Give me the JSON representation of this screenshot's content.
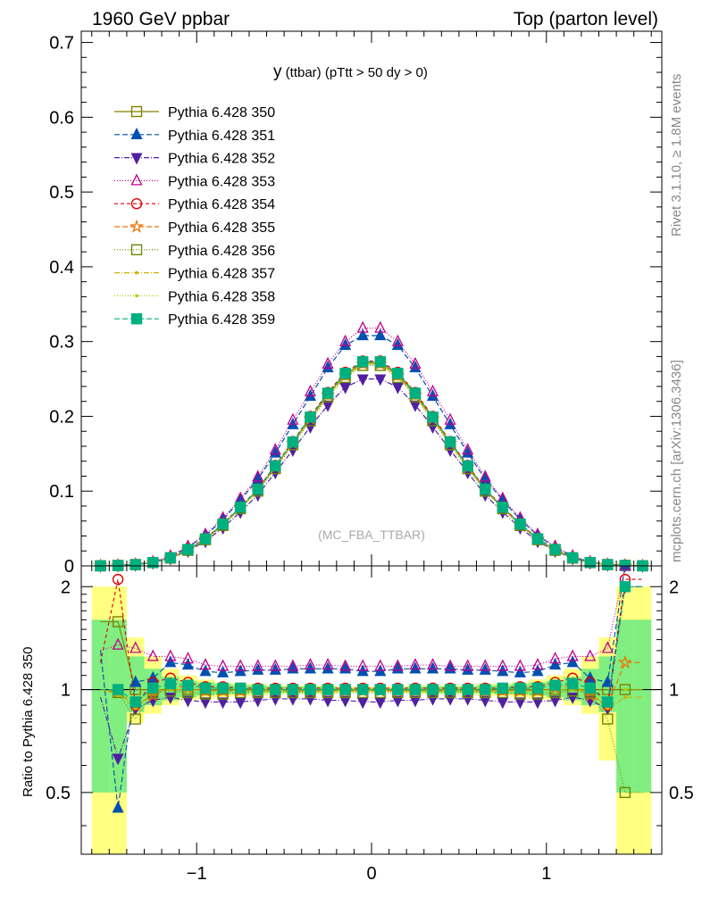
{
  "header": {
    "left_title": "1960 GeV ppbar",
    "right_title": "Top (parton level)"
  },
  "side_labels": {
    "rivet": "Rivet 3.1.10, ≥ 1.8M events",
    "mcplots": "mcplots.cern.ch [arXiv:1306.3436]"
  },
  "chart_data": [
    {
      "type": "line",
      "title_main": "y",
      "title_sub": " (ttbar) (pTtt > 50 dy > 0)",
      "annotation": "(MC_FBA_TTBAR)",
      "xlabel": "",
      "ylabel": "",
      "xlim": [
        -1.66,
        1.66
      ],
      "ylim": [
        0,
        0.715
      ],
      "yticks": [
        0,
        0.1,
        0.2,
        0.3,
        0.4,
        0.5,
        0.6,
        0.7
      ],
      "ytick_labels": [
        "0",
        "0.1",
        "0.2",
        "0.3",
        "0.4",
        "0.5",
        "0.6",
        "0.7"
      ],
      "legend_position": "top-left",
      "grid": false,
      "x": [
        -1.55,
        -1.45,
        -1.35,
        -1.25,
        -1.15,
        -1.05,
        -0.95,
        -0.85,
        -0.75,
        -0.65,
        -0.55,
        -0.45,
        -0.35,
        -0.25,
        -0.15,
        -0.05,
        0.05,
        0.15,
        0.25,
        0.35,
        0.45,
        0.55,
        0.65,
        0.75,
        0.85,
        0.95,
        1.05,
        1.15,
        1.25,
        1.35,
        1.45,
        1.55
      ],
      "series": [
        {
          "name": "Pythia 6.428 350",
          "color": "#808000",
          "dash": "",
          "marker": "square-open",
          "values": [
            0.0001,
            0.0006,
            0.0018,
            0.0045,
            0.0105,
            0.0212,
            0.036,
            0.0555,
            0.078,
            0.102,
            0.133,
            0.165,
            0.198,
            0.23,
            0.256,
            0.272,
            0.272,
            0.256,
            0.23,
            0.198,
            0.165,
            0.133,
            0.102,
            0.078,
            0.0555,
            0.036,
            0.0212,
            0.0105,
            0.0045,
            0.0018,
            0.0006,
            0.0001
          ]
        },
        {
          "name": "Pythia 6.428 351",
          "color": "#0050b0",
          "dash": "6,3",
          "marker": "triangle-up",
          "values": [
            0.0001,
            0.0008,
            0.0019,
            0.0049,
            0.0125,
            0.025,
            0.0405,
            0.062,
            0.088,
            0.116,
            0.151,
            0.189,
            0.227,
            0.265,
            0.295,
            0.308,
            0.308,
            0.295,
            0.265,
            0.227,
            0.189,
            0.151,
            0.116,
            0.088,
            0.062,
            0.0405,
            0.025,
            0.0125,
            0.0049,
            0.0019,
            0.0008,
            0.0001
          ]
        },
        {
          "name": "Pythia 6.428 352",
          "color": "#5020a0",
          "dash": "6,2,1,2",
          "marker": "triangle-down",
          "values": [
            0.0001,
            0.0005,
            0.0015,
            0.0042,
            0.01,
            0.02,
            0.033,
            0.051,
            0.072,
            0.095,
            0.125,
            0.155,
            0.186,
            0.215,
            0.239,
            0.25,
            0.25,
            0.239,
            0.215,
            0.186,
            0.155,
            0.125,
            0.095,
            0.072,
            0.051,
            0.033,
            0.02,
            0.01,
            0.0042,
            0.0015,
            0.0005,
            0.0001
          ]
        },
        {
          "name": "Pythia 6.428 353",
          "color": "#c0008c",
          "dash": "1,2",
          "marker": "triangle-up-open",
          "values": [
            0.0001,
            0.0008,
            0.0023,
            0.0055,
            0.0132,
            0.026,
            0.042,
            0.064,
            0.09,
            0.119,
            0.155,
            0.195,
            0.233,
            0.27,
            0.3,
            0.318,
            0.318,
            0.3,
            0.27,
            0.233,
            0.195,
            0.155,
            0.119,
            0.09,
            0.064,
            0.042,
            0.026,
            0.0132,
            0.0055,
            0.0023,
            0.0008,
            0.0001
          ]
        },
        {
          "name": "Pythia 6.428 354",
          "color": "#e00000",
          "dash": "4,3",
          "marker": "circle-open",
          "values": [
            0.0001,
            0.001,
            0.0016,
            0.0047,
            0.0112,
            0.0224,
            0.0366,
            0.0564,
            0.079,
            0.103,
            0.1345,
            0.1665,
            0.2,
            0.232,
            0.259,
            0.274,
            0.274,
            0.259,
            0.232,
            0.2,
            0.1665,
            0.1345,
            0.103,
            0.079,
            0.0564,
            0.0366,
            0.0224,
            0.0112,
            0.0047,
            0.0016,
            0.001,
            0.0001
          ]
        },
        {
          "name": "Pythia 6.428 355",
          "color": "#f07000",
          "dash": "6,3",
          "marker": "star-open",
          "values": [
            0.0001,
            0.0006,
            0.0016,
            0.0043,
            0.0108,
            0.0215,
            0.0356,
            0.055,
            0.0775,
            0.1015,
            0.132,
            0.164,
            0.1965,
            0.2285,
            0.2545,
            0.27,
            0.27,
            0.2545,
            0.2285,
            0.1965,
            0.164,
            0.132,
            0.1015,
            0.0775,
            0.055,
            0.0356,
            0.0215,
            0.0108,
            0.0043,
            0.0016,
            0.0006,
            0.0001
          ]
        },
        {
          "name": "Pythia 6.428 356",
          "color": "#6a8a00",
          "dash": "1,2",
          "marker": "square-open",
          "values": [
            0.0001,
            0.0006,
            0.0017,
            0.0044,
            0.0104,
            0.0208,
            0.035,
            0.054,
            0.0765,
            0.1,
            0.13,
            0.162,
            0.194,
            0.226,
            0.252,
            0.268,
            0.268,
            0.252,
            0.226,
            0.194,
            0.162,
            0.13,
            0.1,
            0.0765,
            0.054,
            0.035,
            0.0208,
            0.0104,
            0.0044,
            0.0017,
            0.0006,
            0.0001
          ]
        },
        {
          "name": "Pythia 6.428 357",
          "color": "#d0b000",
          "dash": "6,2,1,2",
          "marker": "dot",
          "values": [
            0.0001,
            0.0006,
            0.0017,
            0.0045,
            0.0106,
            0.0212,
            0.0355,
            0.0548,
            0.0772,
            0.101,
            0.1318,
            0.1636,
            0.196,
            0.228,
            0.254,
            0.27,
            0.27,
            0.254,
            0.228,
            0.196,
            0.1636,
            0.1318,
            0.101,
            0.0772,
            0.0548,
            0.0355,
            0.0212,
            0.0106,
            0.0045,
            0.0017,
            0.0006,
            0.0001
          ]
        },
        {
          "name": "Pythia 6.428 358",
          "color": "#a8d400",
          "dash": "1,2",
          "marker": "dot",
          "values": [
            0.0001,
            0.0006,
            0.0017,
            0.0045,
            0.0107,
            0.0213,
            0.0357,
            0.0551,
            0.0776,
            0.1015,
            0.1322,
            0.164,
            0.1966,
            0.2288,
            0.2548,
            0.2708,
            0.2708,
            0.2548,
            0.2288,
            0.1966,
            0.164,
            0.1322,
            0.1015,
            0.0776,
            0.0551,
            0.0357,
            0.0213,
            0.0107,
            0.0045,
            0.0017,
            0.0006,
            0.0001
          ]
        },
        {
          "name": "Pythia 6.428 359",
          "color": "#00b080",
          "dash": "6,3",
          "marker": "square-filled",
          "values": [
            0.0001,
            0.0006,
            0.0017,
            0.0046,
            0.011,
            0.022,
            0.0362,
            0.056,
            0.0785,
            0.1025,
            0.1338,
            0.1658,
            0.199,
            0.231,
            0.2575,
            0.273,
            0.273,
            0.2575,
            0.231,
            0.199,
            0.1658,
            0.1338,
            0.1025,
            0.0785,
            0.056,
            0.0362,
            0.022,
            0.011,
            0.0046,
            0.0017,
            0.0006,
            0.0001
          ]
        }
      ]
    },
    {
      "type": "line",
      "ylabel": "Ratio to Pythia 6.428 350",
      "xlim": [
        -1.66,
        1.66
      ],
      "ylim": [
        0.33,
        2.3
      ],
      "y_scale": "log",
      "yticks": [
        0.5,
        1,
        2
      ],
      "ytick_labels": [
        "0.5",
        "1",
        "2"
      ],
      "xticks": [
        -1,
        0,
        1
      ],
      "xtick_labels": [
        "−1",
        "0",
        "1"
      ],
      "reference_line": 1,
      "uncertainty_bands": [
        {
          "color": "#ffff80",
          "lower": [
            0.3,
            0.3,
            0.8,
            0.85,
            0.9,
            0.93,
            0.94,
            0.95,
            0.96,
            0.96,
            0.97,
            0.97,
            0.97,
            0.97,
            0.98,
            0.98,
            0.98,
            0.98,
            0.97,
            0.97,
            0.97,
            0.97,
            0.96,
            0.96,
            0.95,
            0.94,
            0.93,
            0.9,
            0.85,
            0.62,
            0.3,
            0.3
          ],
          "upper": [
            2.0,
            2.0,
            1.42,
            1.25,
            1.15,
            1.1,
            1.07,
            1.05,
            1.04,
            1.04,
            1.03,
            1.03,
            1.03,
            1.03,
            1.02,
            1.02,
            1.02,
            1.02,
            1.03,
            1.03,
            1.03,
            1.03,
            1.04,
            1.04,
            1.05,
            1.07,
            1.1,
            1.15,
            1.25,
            1.42,
            2.0,
            2.0
          ]
        },
        {
          "color": "#80ee80",
          "lower": [
            0.5,
            0.5,
            0.86,
            0.9,
            0.93,
            0.95,
            0.96,
            0.97,
            0.97,
            0.98,
            0.98,
            0.98,
            0.98,
            0.99,
            0.99,
            0.99,
            0.99,
            0.99,
            0.99,
            0.98,
            0.98,
            0.98,
            0.98,
            0.97,
            0.97,
            0.96,
            0.95,
            0.93,
            0.9,
            0.86,
            0.5,
            0.5
          ],
          "upper": [
            1.6,
            1.6,
            1.25,
            1.15,
            1.09,
            1.06,
            1.05,
            1.04,
            1.03,
            1.03,
            1.02,
            1.02,
            1.02,
            1.02,
            1.01,
            1.01,
            1.01,
            1.01,
            1.02,
            1.02,
            1.02,
            1.02,
            1.03,
            1.03,
            1.04,
            1.05,
            1.06,
            1.09,
            1.15,
            1.25,
            1.6,
            1.6
          ]
        }
      ],
      "series_ratios": [
        {
          "name": "Pythia 6.428 350",
          "values": [
            1.58,
            1.58,
            1.0,
            1.0,
            1.0,
            1.0,
            1.0,
            1.0,
            1.0,
            1.0,
            1.0,
            1.0,
            1.0,
            1.0,
            1.0,
            1.0,
            1.0,
            1.0,
            1.0,
            1.0,
            1.0,
            1.0,
            1.0,
            1.0,
            1.0,
            1.0,
            1.0,
            1.0,
            1.0,
            1.0,
            1.0,
            1.0
          ]
        },
        {
          "name": "Pythia 6.428 351",
          "values": [
            1.3,
            0.45,
            1.05,
            1.08,
            1.2,
            1.18,
            1.13,
            1.12,
            1.13,
            1.14,
            1.14,
            1.15,
            1.15,
            1.15,
            1.15,
            1.13,
            1.13,
            1.15,
            1.15,
            1.15,
            1.15,
            1.14,
            1.14,
            1.13,
            1.12,
            1.13,
            1.18,
            1.2,
            1.08,
            1.05,
            2.3,
            2.3
          ]
        },
        {
          "name": "Pythia 6.428 352",
          "values": [
            0.95,
            0.63,
            0.88,
            0.93,
            0.95,
            0.93,
            0.92,
            0.92,
            0.92,
            0.93,
            0.94,
            0.94,
            0.94,
            0.93,
            0.93,
            0.92,
            0.92,
            0.93,
            0.93,
            0.94,
            0.94,
            0.94,
            0.93,
            0.92,
            0.92,
            0.92,
            0.93,
            0.95,
            0.93,
            0.88,
            2.0,
            2.0
          ]
        },
        {
          "name": "Pythia 6.428 353",
          "values": [
            1.3,
            1.35,
            1.32,
            1.25,
            1.25,
            1.23,
            1.18,
            1.17,
            1.17,
            1.17,
            1.17,
            1.17,
            1.18,
            1.18,
            1.17,
            1.17,
            1.17,
            1.17,
            1.18,
            1.18,
            1.17,
            1.17,
            1.17,
            1.17,
            1.17,
            1.18,
            1.23,
            1.25,
            1.25,
            1.32,
            2.3,
            2.3
          ]
        },
        {
          "name": "Pythia 6.428 354",
          "values": [
            1.2,
            2.1,
            0.9,
            1.05,
            1.08,
            1.05,
            1.02,
            1.02,
            1.01,
            1.01,
            1.01,
            1.01,
            1.01,
            1.01,
            1.01,
            1.01,
            1.01,
            1.01,
            1.01,
            1.01,
            1.01,
            1.01,
            1.01,
            1.01,
            1.02,
            1.02,
            1.05,
            1.08,
            1.05,
            0.9,
            2.1,
            2.1
          ]
        },
        {
          "name": "Pythia 6.428 355",
          "values": [
            1.0,
            0.98,
            0.9,
            0.96,
            1.03,
            1.01,
            0.99,
            0.99,
            0.99,
            0.99,
            0.99,
            0.99,
            0.99,
            0.99,
            0.99,
            0.99,
            0.99,
            0.99,
            0.99,
            0.99,
            0.99,
            0.99,
            0.99,
            0.99,
            0.99,
            0.99,
            1.01,
            1.03,
            0.96,
            0.9,
            1.2,
            1.2
          ]
        },
        {
          "name": "Pythia 6.428 356",
          "values": [
            1.0,
            0.98,
            0.82,
            0.98,
            0.99,
            0.98,
            0.97,
            0.97,
            0.98,
            0.98,
            0.98,
            0.98,
            0.98,
            0.98,
            0.98,
            0.98,
            0.98,
            0.98,
            0.98,
            0.98,
            0.98,
            0.98,
            0.98,
            0.98,
            0.97,
            0.97,
            0.98,
            0.99,
            0.98,
            0.82,
            0.5,
            0.5
          ]
        },
        {
          "name": "Pythia 6.428 357",
          "values": [
            1.0,
            0.97,
            0.88,
            0.99,
            1.0,
            1.0,
            0.99,
            0.99,
            0.99,
            0.99,
            0.99,
            0.99,
            0.99,
            0.99,
            0.99,
            0.99,
            0.99,
            0.99,
            0.99,
            0.99,
            0.99,
            0.99,
            0.99,
            0.99,
            0.99,
            0.99,
            1.0,
            1.0,
            0.99,
            0.88,
            0.95,
            0.95
          ]
        },
        {
          "name": "Pythia 6.428 358",
          "values": [
            1.0,
            0.97,
            0.92,
            1.0,
            1.01,
            1.0,
            0.99,
            0.99,
            0.99,
            1.0,
            1.0,
            1.0,
            1.0,
            1.0,
            1.0,
            1.0,
            1.0,
            1.0,
            1.0,
            1.0,
            1.0,
            1.0,
            1.0,
            0.99,
            0.99,
            0.99,
            1.0,
            1.01,
            1.0,
            0.92,
            1.0,
            1.0
          ]
        },
        {
          "name": "Pythia 6.428 359",
          "values": [
            1.0,
            1.0,
            0.92,
            1.01,
            1.04,
            1.03,
            1.01,
            1.01,
            1.01,
            1.0,
            1.0,
            1.0,
            1.0,
            1.0,
            1.0,
            1.0,
            1.0,
            1.0,
            1.0,
            1.0,
            1.0,
            1.0,
            1.0,
            1.01,
            1.01,
            1.01,
            1.03,
            1.04,
            1.01,
            0.92,
            2.0,
            2.0
          ]
        }
      ]
    }
  ]
}
